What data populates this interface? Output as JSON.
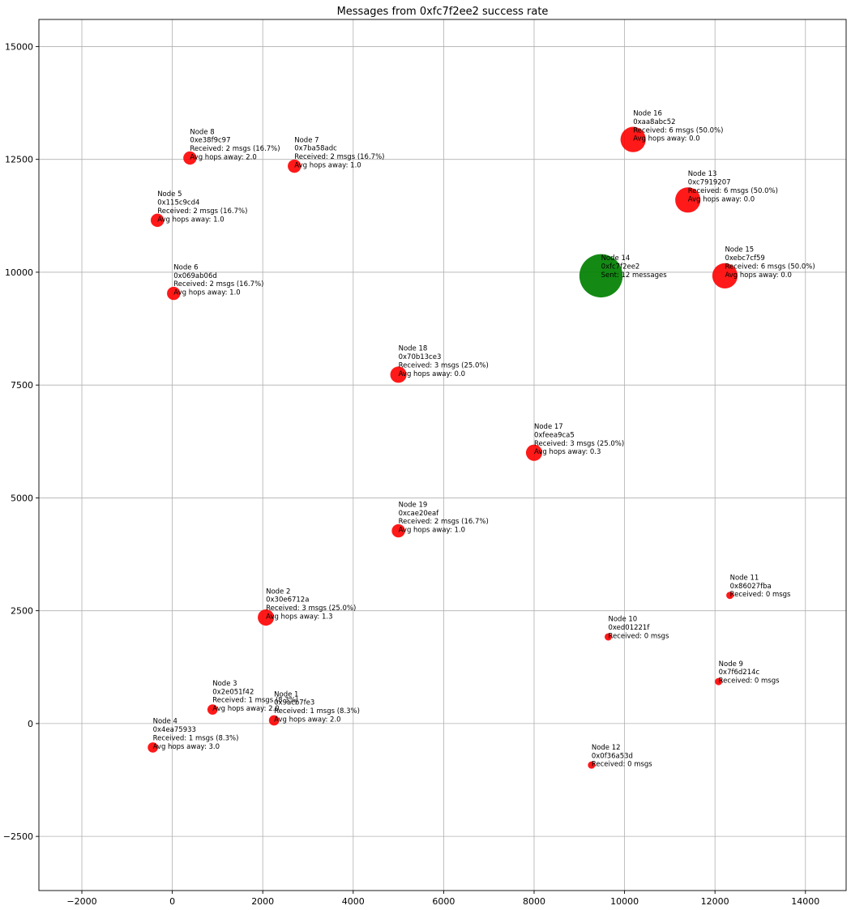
{
  "chart_data": {
    "type": "scatter",
    "title": "Messages from 0xfc7f2ee2 success rate",
    "xlabel": "",
    "ylabel": "",
    "xlim": [
      -2950,
      14900
    ],
    "ylim": [
      -3700,
      15600
    ],
    "x_ticks": [
      -2000,
      0,
      2000,
      4000,
      6000,
      8000,
      10000,
      12000,
      14000
    ],
    "x_tick_labels": [
      "−2000",
      "0",
      "2000",
      "4000",
      "6000",
      "8000",
      "10000",
      "12000",
      "14000"
    ],
    "y_ticks": [
      -2500,
      0,
      2500,
      5000,
      7500,
      10000,
      12500,
      15000
    ],
    "y_tick_labels": [
      "−2500",
      "0",
      "2500",
      "5000",
      "7500",
      "10000",
      "12500",
      "15000"
    ],
    "grid": true,
    "colors": {
      "sender": "#008000",
      "receiver": "#ff0000"
    },
    "points": [
      {
        "x": 2250,
        "y": 70,
        "size": 1,
        "role": "receiver",
        "lines": [
          "Node 1",
          "0x9acb7fe3",
          "Received: 1 msgs (8.3%)",
          "Avg hops away: 2.0"
        ]
      },
      {
        "x": 2070,
        "y": 2350,
        "size": 3,
        "role": "receiver",
        "lines": [
          "Node 2",
          "0x30e6712a",
          "Received: 3 msgs (25.0%)",
          "Avg hops away: 1.3"
        ]
      },
      {
        "x": 890,
        "y": 310,
        "size": 1,
        "role": "receiver",
        "lines": [
          "Node 3",
          "0x2e051f42",
          "Received: 1 msgs (8.3%)",
          "Avg hops away: 2.0"
        ]
      },
      {
        "x": -430,
        "y": -530,
        "size": 1,
        "role": "receiver",
        "lines": [
          "Node 4",
          "0x4ea75933",
          "Received: 1 msgs (8.3%)",
          "Avg hops away: 3.0"
        ]
      },
      {
        "x": -330,
        "y": 11150,
        "size": 2,
        "role": "receiver",
        "lines": [
          "Node 5",
          "0x115c9cd4",
          "Received: 2 msgs (16.7%)",
          "Avg hops away: 1.0"
        ]
      },
      {
        "x": 30,
        "y": 9530,
        "size": 2,
        "role": "receiver",
        "lines": [
          "Node 6",
          "0x069ab06d",
          "Received: 2 msgs (16.7%)",
          "Avg hops away: 1.0"
        ]
      },
      {
        "x": 2700,
        "y": 12350,
        "size": 2,
        "role": "receiver",
        "lines": [
          "Node 7",
          "0x7ba58adc",
          "Received: 2 msgs (16.7%)",
          "Avg hops away: 1.0"
        ]
      },
      {
        "x": 390,
        "y": 12530,
        "size": 2,
        "role": "receiver",
        "lines": [
          "Node 8",
          "0xe38f9c97",
          "Received: 2 msgs (16.7%)",
          "Avg hops away: 2.0"
        ]
      },
      {
        "x": 12080,
        "y": 930,
        "size": 0,
        "role": "receiver",
        "lines": [
          "Node 9",
          "0x7f6d214c",
          "Received: 0 msgs"
        ]
      },
      {
        "x": 9640,
        "y": 1920,
        "size": 0,
        "role": "receiver",
        "lines": [
          "Node 10",
          "0xed01221f",
          "Received: 0 msgs"
        ]
      },
      {
        "x": 12330,
        "y": 2840,
        "size": 0,
        "role": "receiver",
        "lines": [
          "Node 11",
          "0x86027fba",
          "Received: 0 msgs"
        ]
      },
      {
        "x": 9270,
        "y": -920,
        "size": 0,
        "role": "receiver",
        "lines": [
          "Node 12",
          "0x0f36a53d",
          "Received: 0 msgs"
        ]
      },
      {
        "x": 11400,
        "y": 11600,
        "size": 6,
        "role": "receiver",
        "lines": [
          "Node 13",
          "0xc7919207",
          "Received: 6 msgs (50.0%)",
          "Avg hops away: 0.0"
        ]
      },
      {
        "x": 9480,
        "y": 9920,
        "size": 12,
        "role": "sender",
        "lines": [
          "Node 14",
          "0xfc7f2ee2",
          "Sent: 12 messages"
        ]
      },
      {
        "x": 12220,
        "y": 9920,
        "size": 6,
        "role": "receiver",
        "lines": [
          "Node 15",
          "0xebc7cf59",
          "Received: 6 msgs (50.0%)",
          "Avg hops away: 0.0"
        ]
      },
      {
        "x": 10190,
        "y": 12940,
        "size": 6,
        "role": "receiver",
        "lines": [
          "Node 16",
          "0xaa8abc52",
          "Received: 6 msgs (50.0%)",
          "Avg hops away: 0.0"
        ]
      },
      {
        "x": 8000,
        "y": 6000,
        "size": 3,
        "role": "receiver",
        "lines": [
          "Node 17",
          "0xfeea9ca5",
          "Received: 3 msgs (25.0%)",
          "Avg hops away: 0.3"
        ]
      },
      {
        "x": 5000,
        "y": 7730,
        "size": 3,
        "role": "receiver",
        "lines": [
          "Node 18",
          "0x70b13ce3",
          "Received: 3 msgs (25.0%)",
          "Avg hops away: 0.0"
        ]
      },
      {
        "x": 5000,
        "y": 4270,
        "size": 2,
        "role": "receiver",
        "lines": [
          "Node 19",
          "0xcae20eaf",
          "Received: 2 msgs (16.7%)",
          "Avg hops away: 1.0"
        ]
      }
    ]
  }
}
